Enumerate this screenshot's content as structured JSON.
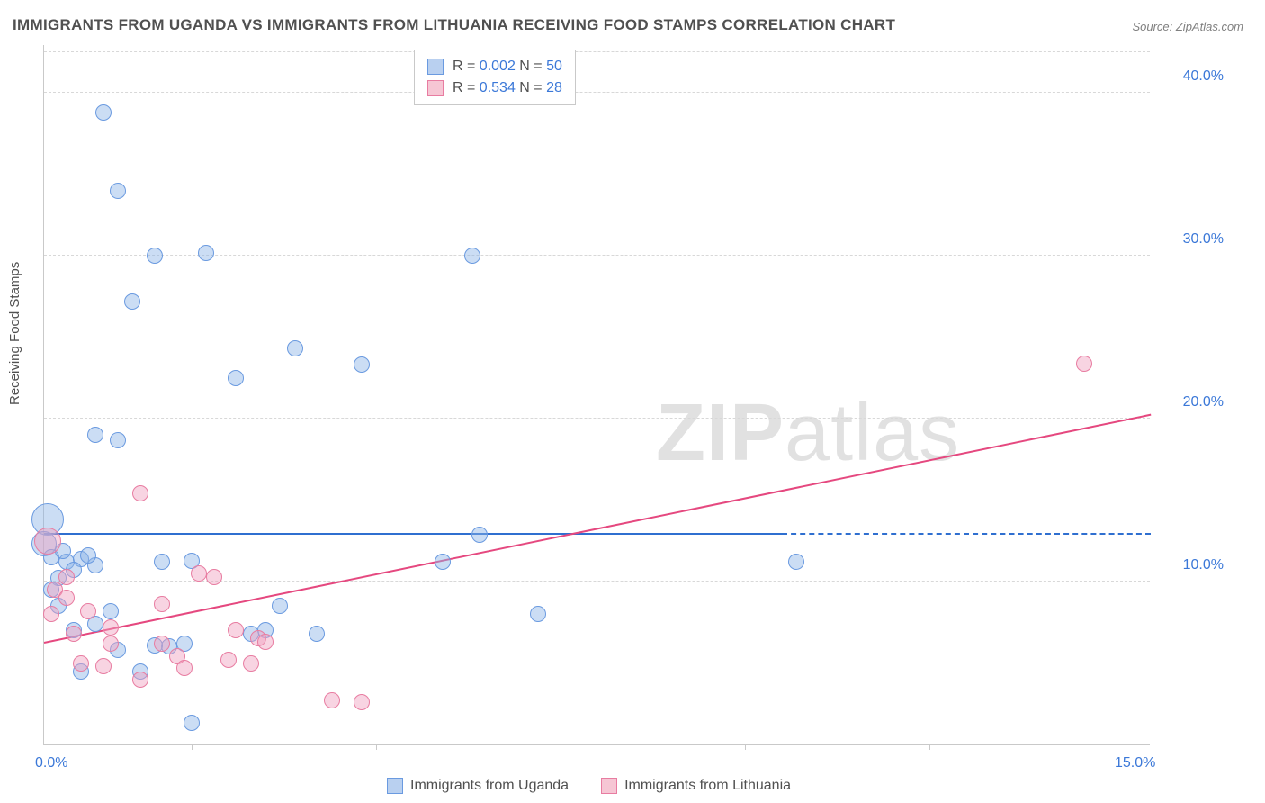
{
  "chart": {
    "type": "scatter",
    "title": "IMMIGRANTS FROM UGANDA VS IMMIGRANTS FROM LITHUANIA RECEIVING FOOD STAMPS CORRELATION CHART",
    "source": "Source: ZipAtlas.com",
    "y_axis_title": "Receiving Food Stamps",
    "watermark_bold": "ZIP",
    "watermark_light": "atlas",
    "background_color": "#ffffff",
    "grid_color": "#d8d8d8",
    "axis_color": "#c9c9c9",
    "tick_label_color": "#3b78d8",
    "text_color": "#505050",
    "xlim": [
      0.0,
      15.0
    ],
    "ylim": [
      0.0,
      43.0
    ],
    "y_ticks": [
      {
        "value": 10.0,
        "label": "10.0%"
      },
      {
        "value": 20.0,
        "label": "20.0%"
      },
      {
        "value": 30.0,
        "label": "30.0%"
      },
      {
        "value": 40.0,
        "label": "40.0%"
      }
    ],
    "x_ticks": [
      {
        "value": 0.0,
        "label": "0.0%"
      },
      {
        "value": 15.0,
        "label": "15.0%"
      }
    ],
    "x_minor_ticks": [
      2.0,
      4.5,
      7.0,
      9.5,
      12.0
    ],
    "legend_top": [
      {
        "swatch_fill": "#b9d0f0",
        "swatch_border": "#6a9ae0",
        "r_label": "R = ",
        "r_value": "0.002",
        "n_label": "   N = ",
        "n_value": "50"
      },
      {
        "swatch_fill": "#f6c6d4",
        "swatch_border": "#e87ca1",
        "r_label": "R = ",
        "r_value": "0.534",
        "n_label": "   N = ",
        "n_value": "28"
      }
    ],
    "legend_bottom": [
      {
        "swatch_fill": "#b9d0f0",
        "swatch_border": "#6a9ae0",
        "label": "Immigrants from Uganda"
      },
      {
        "swatch_fill": "#f6c6d4",
        "swatch_border": "#e87ca1",
        "label": "Immigrants from Lithuania"
      }
    ],
    "series": [
      {
        "name": "Immigrants from Uganda",
        "marker_fill": "rgba(140,180,230,0.45)",
        "marker_border": "#6a9ae0",
        "marker_radius": 9,
        "trend_fill": "#2f6fd0",
        "trend_solid_xmax": 10.0,
        "trend": {
          "x1": 0.0,
          "y1": 12.9,
          "x2": 15.0,
          "y2": 12.9
        },
        "points": [
          {
            "x": 0.05,
            "y": 13.8,
            "r": 18
          },
          {
            "x": 0.0,
            "y": 12.3,
            "r": 14
          },
          {
            "x": 0.8,
            "y": 38.8
          },
          {
            "x": 1.0,
            "y": 34.0
          },
          {
            "x": 2.2,
            "y": 30.2
          },
          {
            "x": 1.5,
            "y": 30.0
          },
          {
            "x": 1.2,
            "y": 27.2
          },
          {
            "x": 3.4,
            "y": 24.3
          },
          {
            "x": 4.3,
            "y": 23.3
          },
          {
            "x": 2.6,
            "y": 22.5
          },
          {
            "x": 5.8,
            "y": 30.0
          },
          {
            "x": 0.7,
            "y": 19.0
          },
          {
            "x": 1.0,
            "y": 18.7
          },
          {
            "x": 0.1,
            "y": 11.5
          },
          {
            "x": 0.3,
            "y": 11.2
          },
          {
            "x": 0.5,
            "y": 11.4
          },
          {
            "x": 0.7,
            "y": 11.0
          },
          {
            "x": 0.4,
            "y": 10.7
          },
          {
            "x": 0.2,
            "y": 10.2
          },
          {
            "x": 0.1,
            "y": 9.5
          },
          {
            "x": 2.0,
            "y": 11.3
          },
          {
            "x": 5.4,
            "y": 11.2
          },
          {
            "x": 5.9,
            "y": 12.9
          },
          {
            "x": 10.2,
            "y": 11.2
          },
          {
            "x": 6.7,
            "y": 8.0
          },
          {
            "x": 3.2,
            "y": 8.5
          },
          {
            "x": 2.8,
            "y": 6.8
          },
          {
            "x": 3.0,
            "y": 7.0
          },
          {
            "x": 3.7,
            "y": 6.8
          },
          {
            "x": 1.9,
            "y": 6.2
          },
          {
            "x": 1.7,
            "y": 6.0
          },
          {
            "x": 1.5,
            "y": 6.1
          },
          {
            "x": 0.9,
            "y": 8.2
          },
          {
            "x": 0.7,
            "y": 7.4
          },
          {
            "x": 1.0,
            "y": 5.8
          },
          {
            "x": 0.4,
            "y": 7.0
          },
          {
            "x": 0.2,
            "y": 8.5
          },
          {
            "x": 1.3,
            "y": 4.5
          },
          {
            "x": 2.0,
            "y": 1.3
          },
          {
            "x": 0.5,
            "y": 4.5
          },
          {
            "x": 1.6,
            "y": 11.2
          },
          {
            "x": 0.25,
            "y": 11.9
          },
          {
            "x": 0.6,
            "y": 11.6
          }
        ]
      },
      {
        "name": "Immigrants from Lithuania",
        "marker_fill": "rgba(240,160,190,0.45)",
        "marker_border": "#e87ca1",
        "marker_radius": 9,
        "trend_fill": "#e5487f",
        "trend_solid_xmax": 15.0,
        "trend": {
          "x1": 0.0,
          "y1": 6.2,
          "x2": 15.0,
          "y2": 20.2
        },
        "points": [
          {
            "x": 0.05,
            "y": 12.5,
            "r": 15
          },
          {
            "x": 14.1,
            "y": 23.4
          },
          {
            "x": 1.3,
            "y": 15.4
          },
          {
            "x": 2.1,
            "y": 10.5
          },
          {
            "x": 2.3,
            "y": 10.3
          },
          {
            "x": 0.15,
            "y": 9.5
          },
          {
            "x": 0.3,
            "y": 9.0
          },
          {
            "x": 0.6,
            "y": 8.2
          },
          {
            "x": 1.6,
            "y": 8.6
          },
          {
            "x": 2.6,
            "y": 7.0
          },
          {
            "x": 2.9,
            "y": 6.5
          },
          {
            "x": 2.5,
            "y": 5.2
          },
          {
            "x": 2.8,
            "y": 5.0
          },
          {
            "x": 3.0,
            "y": 6.3
          },
          {
            "x": 1.8,
            "y": 5.4
          },
          {
            "x": 1.9,
            "y": 4.7
          },
          {
            "x": 1.6,
            "y": 6.2
          },
          {
            "x": 0.9,
            "y": 6.2
          },
          {
            "x": 0.5,
            "y": 5.0
          },
          {
            "x": 0.4,
            "y": 6.8
          },
          {
            "x": 0.8,
            "y": 4.8
          },
          {
            "x": 1.3,
            "y": 4.0
          },
          {
            "x": 3.9,
            "y": 2.7
          },
          {
            "x": 4.3,
            "y": 2.6
          },
          {
            "x": 0.3,
            "y": 10.3
          },
          {
            "x": 0.1,
            "y": 8.0
          },
          {
            "x": 0.9,
            "y": 7.2
          }
        ]
      }
    ]
  }
}
